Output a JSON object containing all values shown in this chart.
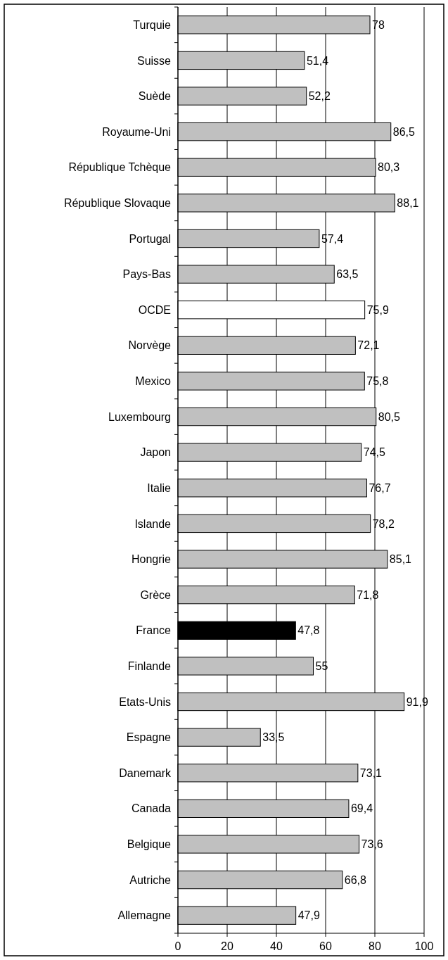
{
  "chart_data": {
    "type": "bar",
    "orientation": "horizontal",
    "categories": [
      "Turquie",
      "Suisse",
      "Suède",
      "Royaume-Uni",
      "République Tchèque",
      "République Slovaque",
      "Portugal",
      "Pays-Bas",
      "OCDE",
      "Norvège",
      "Mexico",
      "Luxembourg",
      "Japon",
      "Italie",
      "Islande",
      "Hongrie",
      "Grèce",
      "France",
      "Finlande",
      "Etats-Unis",
      "Espagne",
      "Danemark",
      "Canada",
      "Belgique",
      "Autriche",
      "Allemagne"
    ],
    "values": [
      78,
      51.4,
      52.2,
      86.5,
      80.3,
      88.1,
      57.4,
      63.5,
      75.9,
      72.1,
      75.8,
      80.5,
      74.5,
      76.7,
      78.2,
      85.1,
      71.8,
      47.8,
      55,
      91.9,
      33.5,
      73.1,
      69.4,
      73.6,
      66.8,
      47.9
    ],
    "value_labels": [
      "78",
      "51,4",
      "52,2",
      "86,5",
      "80,3",
      "88,1",
      "57,4",
      "63,5",
      "75,9",
      "72,1",
      "75,8",
      "80,5",
      "74,5",
      "76,7",
      "78,2",
      "85,1",
      "71,8",
      "47,8",
      "55",
      "91,9",
      "33,5",
      "73,1",
      "69,4",
      "73,6",
      "66,8",
      "47,9"
    ],
    "colors": [
      "#c0c0c0",
      "#c0c0c0",
      "#c0c0c0",
      "#c0c0c0",
      "#c0c0c0",
      "#c0c0c0",
      "#c0c0c0",
      "#c0c0c0",
      "#ffffff",
      "#c0c0c0",
      "#c0c0c0",
      "#c0c0c0",
      "#c0c0c0",
      "#c0c0c0",
      "#c0c0c0",
      "#c0c0c0",
      "#c0c0c0",
      "#000000",
      "#c0c0c0",
      "#c0c0c0",
      "#c0c0c0",
      "#c0c0c0",
      "#c0c0c0",
      "#c0c0c0",
      "#c0c0c0",
      "#c0c0c0"
    ],
    "xlim": [
      0,
      100
    ],
    "xticks": [
      0,
      20,
      40,
      60,
      80,
      100
    ],
    "grid": "x"
  }
}
